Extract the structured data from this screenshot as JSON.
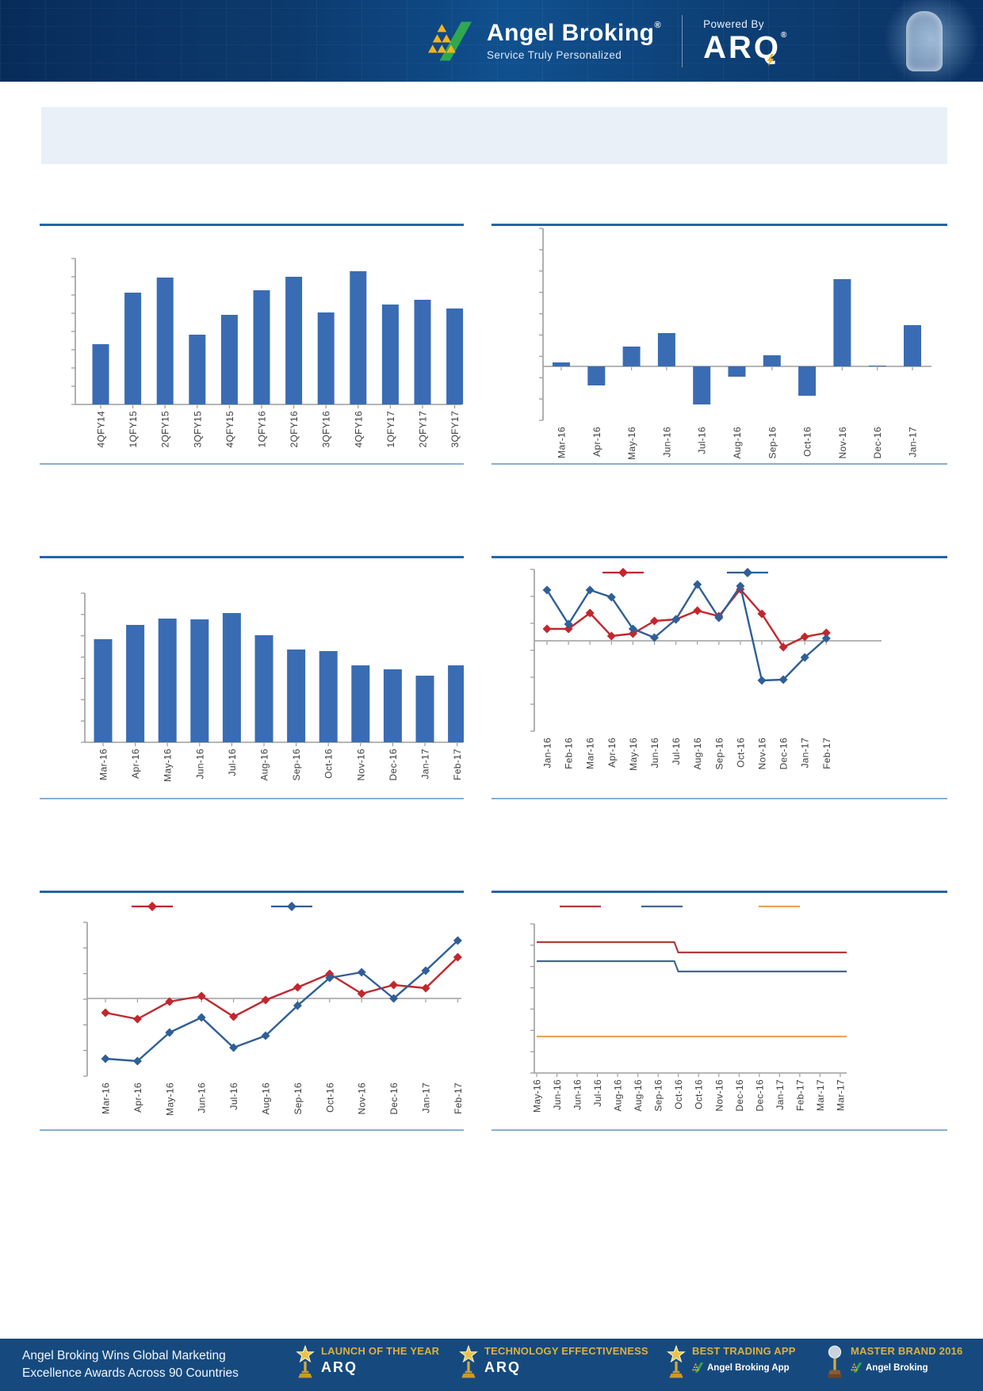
{
  "header": {
    "brand": "Angel Broking",
    "brand_reg": "®",
    "tagline": "Service Truly Personalized",
    "powered_by": "Powered By",
    "arq_brand": "ARQ",
    "arq_reg": "®"
  },
  "banner": {
    "title": ""
  },
  "colors": {
    "bar": "#3a6cb3",
    "axis": "#9d9d9d",
    "rule": "#2565a8",
    "separator": "#86afd4",
    "red": "#c1272d",
    "dark_blue": "#2f5f96",
    "step_red": "#b13c3c",
    "step_blue": "#44678d",
    "orange": "#e8a45c",
    "banner_bg": "#e9f0f8",
    "footer_bg": "#164a7e",
    "gold": "#dfaf3e",
    "header_bg": "#0c3a6e"
  },
  "chart_data": [
    {
      "name": "quarterly-bars",
      "type": "bar",
      "title": "",
      "axis_note": "y-axis ticks unlabeled; values are relative units read from pixels",
      "categories": [
        "4QFY14",
        "1QFY15",
        "2QFY15",
        "3QFY15",
        "4QFY15",
        "1QFY16",
        "2QFY16",
        "3QFY16",
        "4QFY16",
        "1QFY17",
        "2QFY17",
        "3QFY17"
      ],
      "values": [
        76,
        141,
        160,
        88,
        113,
        144,
        161,
        116,
        168,
        126,
        132,
        121
      ],
      "ylim": [
        0,
        185
      ],
      "grid": "off",
      "legend_position": "none"
    },
    {
      "name": "monthly-positive-negative-bars",
      "type": "bar",
      "title": "",
      "axis_note": "y-axis ticks unlabeled; zero line in middle; values are relative units",
      "categories": [
        "Mar-16",
        "Apr-16",
        "May-16",
        "Jun-16",
        "Jul-16",
        "Aug-16",
        "Sep-16",
        "Oct-16",
        "Nov-16",
        "Dec-16",
        "Jan-17"
      ],
      "values": [
        5,
        -24,
        25,
        42,
        -48,
        -13,
        14,
        -37,
        110,
        1,
        52
      ],
      "ylim": [
        -68,
        174
      ],
      "grid": "off",
      "legend_position": "none"
    },
    {
      "name": "monthly-declining-bars",
      "type": "bar",
      "title": "",
      "axis_note": "y-axis ticks unlabeled; values are relative units",
      "categories": [
        "Mar-16",
        "Apr-16",
        "May-16",
        "Jun-16",
        "Jul-16",
        "Aug-16",
        "Sep-16",
        "Oct-16",
        "Nov-16",
        "Dec-16",
        "Jan-17",
        "Feb-17"
      ],
      "values": [
        130,
        148,
        156,
        155,
        163,
        135,
        117,
        115,
        97,
        92,
        84,
        97
      ],
      "ylim": [
        0,
        188
      ],
      "grid": "off",
      "legend_position": "none"
    },
    {
      "name": "two-series-monthly-line",
      "type": "line",
      "title": "",
      "axis_note": "y-axis ticks unlabeled; zero line shown; values are relative units",
      "categories": [
        "Jan-16",
        "Feb-16",
        "Mar-16",
        "Apr-16",
        "May-16",
        "Jun-16",
        "Jul-16",
        "Aug-16",
        "Sep-16",
        "Oct-16",
        "Nov-16",
        "Dec-16",
        "Jan-17",
        "Feb-17"
      ],
      "series": [
        {
          "name": "",
          "color": "#c1272d",
          "marker": "diamond",
          "values": [
            15,
            15,
            35,
            6,
            9,
            25,
            27,
            38,
            31,
            65,
            34,
            -8,
            5,
            10
          ]
        },
        {
          "name": "",
          "color": "#2f5f96",
          "marker": "diamond",
          "values": [
            64,
            21,
            64,
            55,
            15,
            4,
            27,
            71,
            29,
            69,
            -50,
            -49,
            -21,
            3
          ]
        }
      ],
      "ylim": [
        -114,
        90
      ],
      "grid": "off",
      "legend_position": "top (labels blank)"
    },
    {
      "name": "two-series-monthly-line-rising",
      "type": "line",
      "title": "",
      "axis_note": "y-axis ticks unlabeled; zero line shown; values are relative units",
      "categories": [
        "Mar-16",
        "Apr-16",
        "May-16",
        "Jun-16",
        "Jul-16",
        "Aug-16",
        "Sep-16",
        "Oct-16",
        "Nov-16",
        "Dec-16",
        "Jan-17",
        "Feb-17"
      ],
      "series": [
        {
          "name": "",
          "color": "#c1272d",
          "marker": "diamond",
          "values": [
            -18,
            -26,
            -4,
            3,
            -23,
            -2,
            14,
            31,
            6,
            17,
            13,
            52
          ]
        },
        {
          "name": "",
          "color": "#2f5f96",
          "marker": "diamond",
          "values": [
            -76,
            -79,
            -43,
            -24,
            -62,
            -47,
            -9,
            26,
            33,
            0,
            35,
            73
          ]
        }
      ],
      "ylim": [
        -98,
        96
      ],
      "grid": "off",
      "legend_position": "top (labels blank)"
    },
    {
      "name": "three-flat-step-lines",
      "type": "line",
      "title": "",
      "axis_note": "y-axis ticks unlabeled; flat lines with one downward step between Sep-16 and Oct-16; values are relative units",
      "categories": [
        "May-16",
        "Jun-16",
        "Jun-16",
        "Jul-16",
        "Aug-16",
        "Aug-16",
        "Sep-16",
        "Oct-16",
        "Oct-16",
        "Nov-16",
        "Dec-16",
        "Dec-16",
        "Jan-17",
        "Feb-17",
        "Mar-17",
        "Mar-17"
      ],
      "step_between": [
        "Sep-16",
        "Oct-16"
      ],
      "step_between_index": [
        6,
        7
      ],
      "series": [
        {
          "name": "",
          "color": "#b13c3c",
          "marker": "none",
          "level_before": 165,
          "level_after": 152
        },
        {
          "name": "",
          "color": "#44678d",
          "marker": "none",
          "level_before": 141,
          "level_after": 128
        },
        {
          "name": "",
          "color": "#e8a45c",
          "marker": "none",
          "level_before": 46,
          "level_after": 46
        }
      ],
      "ylim": [
        0,
        188
      ],
      "grid": "off",
      "legend_position": "top (labels blank)"
    }
  ],
  "footer": {
    "line1": "Angel Broking Wins Global Marketing",
    "line2": "Excellence Awards Across 90 Countries",
    "awards": [
      {
        "title": "LAUNCH OF THE YEAR",
        "subtitle": "ARQ"
      },
      {
        "title": "TECHNOLOGY EFFECTIVENESS",
        "subtitle": "ARQ"
      },
      {
        "title": "BEST TRADING APP",
        "subtitle": "Angel Broking App"
      },
      {
        "title": "MASTER BRAND 2016",
        "subtitle": "Angel Broking"
      }
    ]
  }
}
